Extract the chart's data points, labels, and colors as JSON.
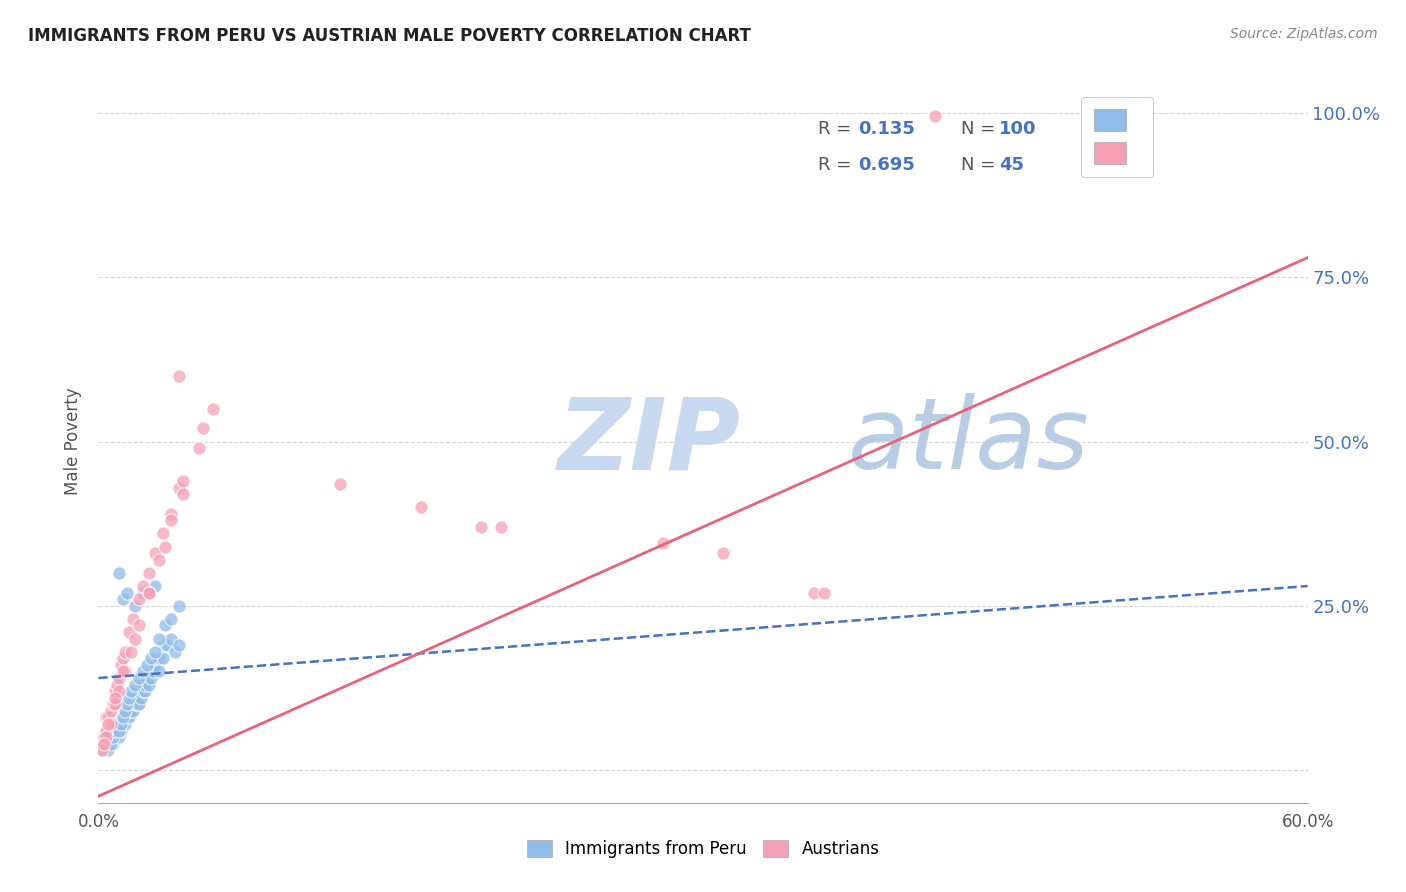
{
  "title": "IMMIGRANTS FROM PERU VS AUSTRIAN MALE POVERTY CORRELATION CHART",
  "source": "Source: ZipAtlas.com",
  "ylabel": "Male Poverty",
  "yticks": [
    0.0,
    0.25,
    0.5,
    0.75,
    1.0
  ],
  "ytick_labels": [
    "",
    "25.0%",
    "50.0%",
    "75.0%",
    "100.0%"
  ],
  "xlim": [
    0.0,
    0.6
  ],
  "ylim": [
    -0.05,
    1.05
  ],
  "legend_r1": "R =  0.135",
  "legend_n1": "N = 100",
  "legend_r2": "R =  0.695",
  "legend_n2": "N =  45",
  "color_blue": "#92bce8",
  "color_pink": "#f5a0b5",
  "color_blue_text": "#4472c4",
  "trendline1_color": "#4472c4",
  "trendline2_color": "#e8637a",
  "watermark_zip_color": "#c8d8ee",
  "watermark_atlas_color": "#b8cce4",
  "background_color": "#ffffff",
  "grid_color": "#cccccc",
  "scatter_blue_x": [
    0.002,
    0.003,
    0.003,
    0.004,
    0.004,
    0.005,
    0.005,
    0.005,
    0.006,
    0.006,
    0.006,
    0.007,
    0.007,
    0.007,
    0.008,
    0.008,
    0.008,
    0.009,
    0.009,
    0.01,
    0.01,
    0.01,
    0.011,
    0.011,
    0.012,
    0.012,
    0.013,
    0.013,
    0.014,
    0.014,
    0.015,
    0.015,
    0.015,
    0.016,
    0.016,
    0.017,
    0.017,
    0.018,
    0.018,
    0.019,
    0.02,
    0.02,
    0.021,
    0.022,
    0.022,
    0.023,
    0.023,
    0.024,
    0.025,
    0.026,
    0.027,
    0.028,
    0.03,
    0.03,
    0.032,
    0.032,
    0.034,
    0.036,
    0.038,
    0.04,
    0.001,
    0.001,
    0.002,
    0.002,
    0.002,
    0.003,
    0.003,
    0.004,
    0.004,
    0.005,
    0.005,
    0.006,
    0.006,
    0.007,
    0.007,
    0.008,
    0.009,
    0.01,
    0.011,
    0.012,
    0.013,
    0.014,
    0.015,
    0.016,
    0.018,
    0.02,
    0.022,
    0.024,
    0.026,
    0.028,
    0.03,
    0.033,
    0.036,
    0.04,
    0.01,
    0.012,
    0.014,
    0.018,
    0.022,
    0.028
  ],
  "scatter_blue_y": [
    0.04,
    0.04,
    0.05,
    0.04,
    0.05,
    0.05,
    0.06,
    0.04,
    0.05,
    0.06,
    0.07,
    0.04,
    0.05,
    0.06,
    0.05,
    0.06,
    0.07,
    0.06,
    0.07,
    0.05,
    0.06,
    0.07,
    0.06,
    0.07,
    0.07,
    0.08,
    0.07,
    0.08,
    0.08,
    0.09,
    0.08,
    0.09,
    0.1,
    0.09,
    0.1,
    0.09,
    0.11,
    0.1,
    0.11,
    0.1,
    0.1,
    0.12,
    0.11,
    0.12,
    0.13,
    0.12,
    0.13,
    0.14,
    0.13,
    0.14,
    0.15,
    0.16,
    0.15,
    0.17,
    0.17,
    0.19,
    0.19,
    0.2,
    0.18,
    0.19,
    0.03,
    0.04,
    0.03,
    0.04,
    0.05,
    0.03,
    0.05,
    0.04,
    0.05,
    0.03,
    0.06,
    0.04,
    0.06,
    0.05,
    0.07,
    0.06,
    0.07,
    0.06,
    0.07,
    0.08,
    0.09,
    0.1,
    0.11,
    0.12,
    0.13,
    0.14,
    0.15,
    0.16,
    0.17,
    0.18,
    0.2,
    0.22,
    0.23,
    0.25,
    0.3,
    0.26,
    0.27,
    0.25,
    0.27,
    0.28
  ],
  "scatter_pink_x": [
    0.002,
    0.003,
    0.004,
    0.004,
    0.005,
    0.006,
    0.007,
    0.008,
    0.009,
    0.01,
    0.011,
    0.012,
    0.013,
    0.015,
    0.017,
    0.02,
    0.022,
    0.025,
    0.028,
    0.032,
    0.036,
    0.04,
    0.002,
    0.004,
    0.006,
    0.008,
    0.01,
    0.013,
    0.016,
    0.02,
    0.025,
    0.03,
    0.036,
    0.042,
    0.05,
    0.057,
    0.003,
    0.005,
    0.008,
    0.012,
    0.018,
    0.025,
    0.033,
    0.042,
    0.052
  ],
  "scatter_pink_y": [
    0.04,
    0.05,
    0.06,
    0.08,
    0.08,
    0.09,
    0.1,
    0.12,
    0.13,
    0.14,
    0.16,
    0.17,
    0.18,
    0.21,
    0.23,
    0.26,
    0.28,
    0.3,
    0.33,
    0.36,
    0.39,
    0.43,
    0.03,
    0.05,
    0.07,
    0.1,
    0.12,
    0.15,
    0.18,
    0.22,
    0.27,
    0.32,
    0.38,
    0.44,
    0.49,
    0.55,
    0.04,
    0.07,
    0.11,
    0.15,
    0.2,
    0.27,
    0.34,
    0.42,
    0.52
  ],
  "extra_pink_x": [
    0.415,
    0.04,
    0.12,
    0.19,
    0.28,
    0.355,
    0.16,
    0.2,
    0.31,
    0.36
  ],
  "extra_pink_y": [
    0.995,
    0.6,
    0.435,
    0.37,
    0.345,
    0.27,
    0.4,
    0.37,
    0.33,
    0.27
  ],
  "trendline1_x0": 0.0,
  "trendline1_y0": 0.14,
  "trendline1_x1": 0.6,
  "trendline1_y1": 0.28,
  "trendline2_x0": 0.0,
  "trendline2_y0": -0.04,
  "trendline2_x1": 0.6,
  "trendline2_y1": 0.78
}
